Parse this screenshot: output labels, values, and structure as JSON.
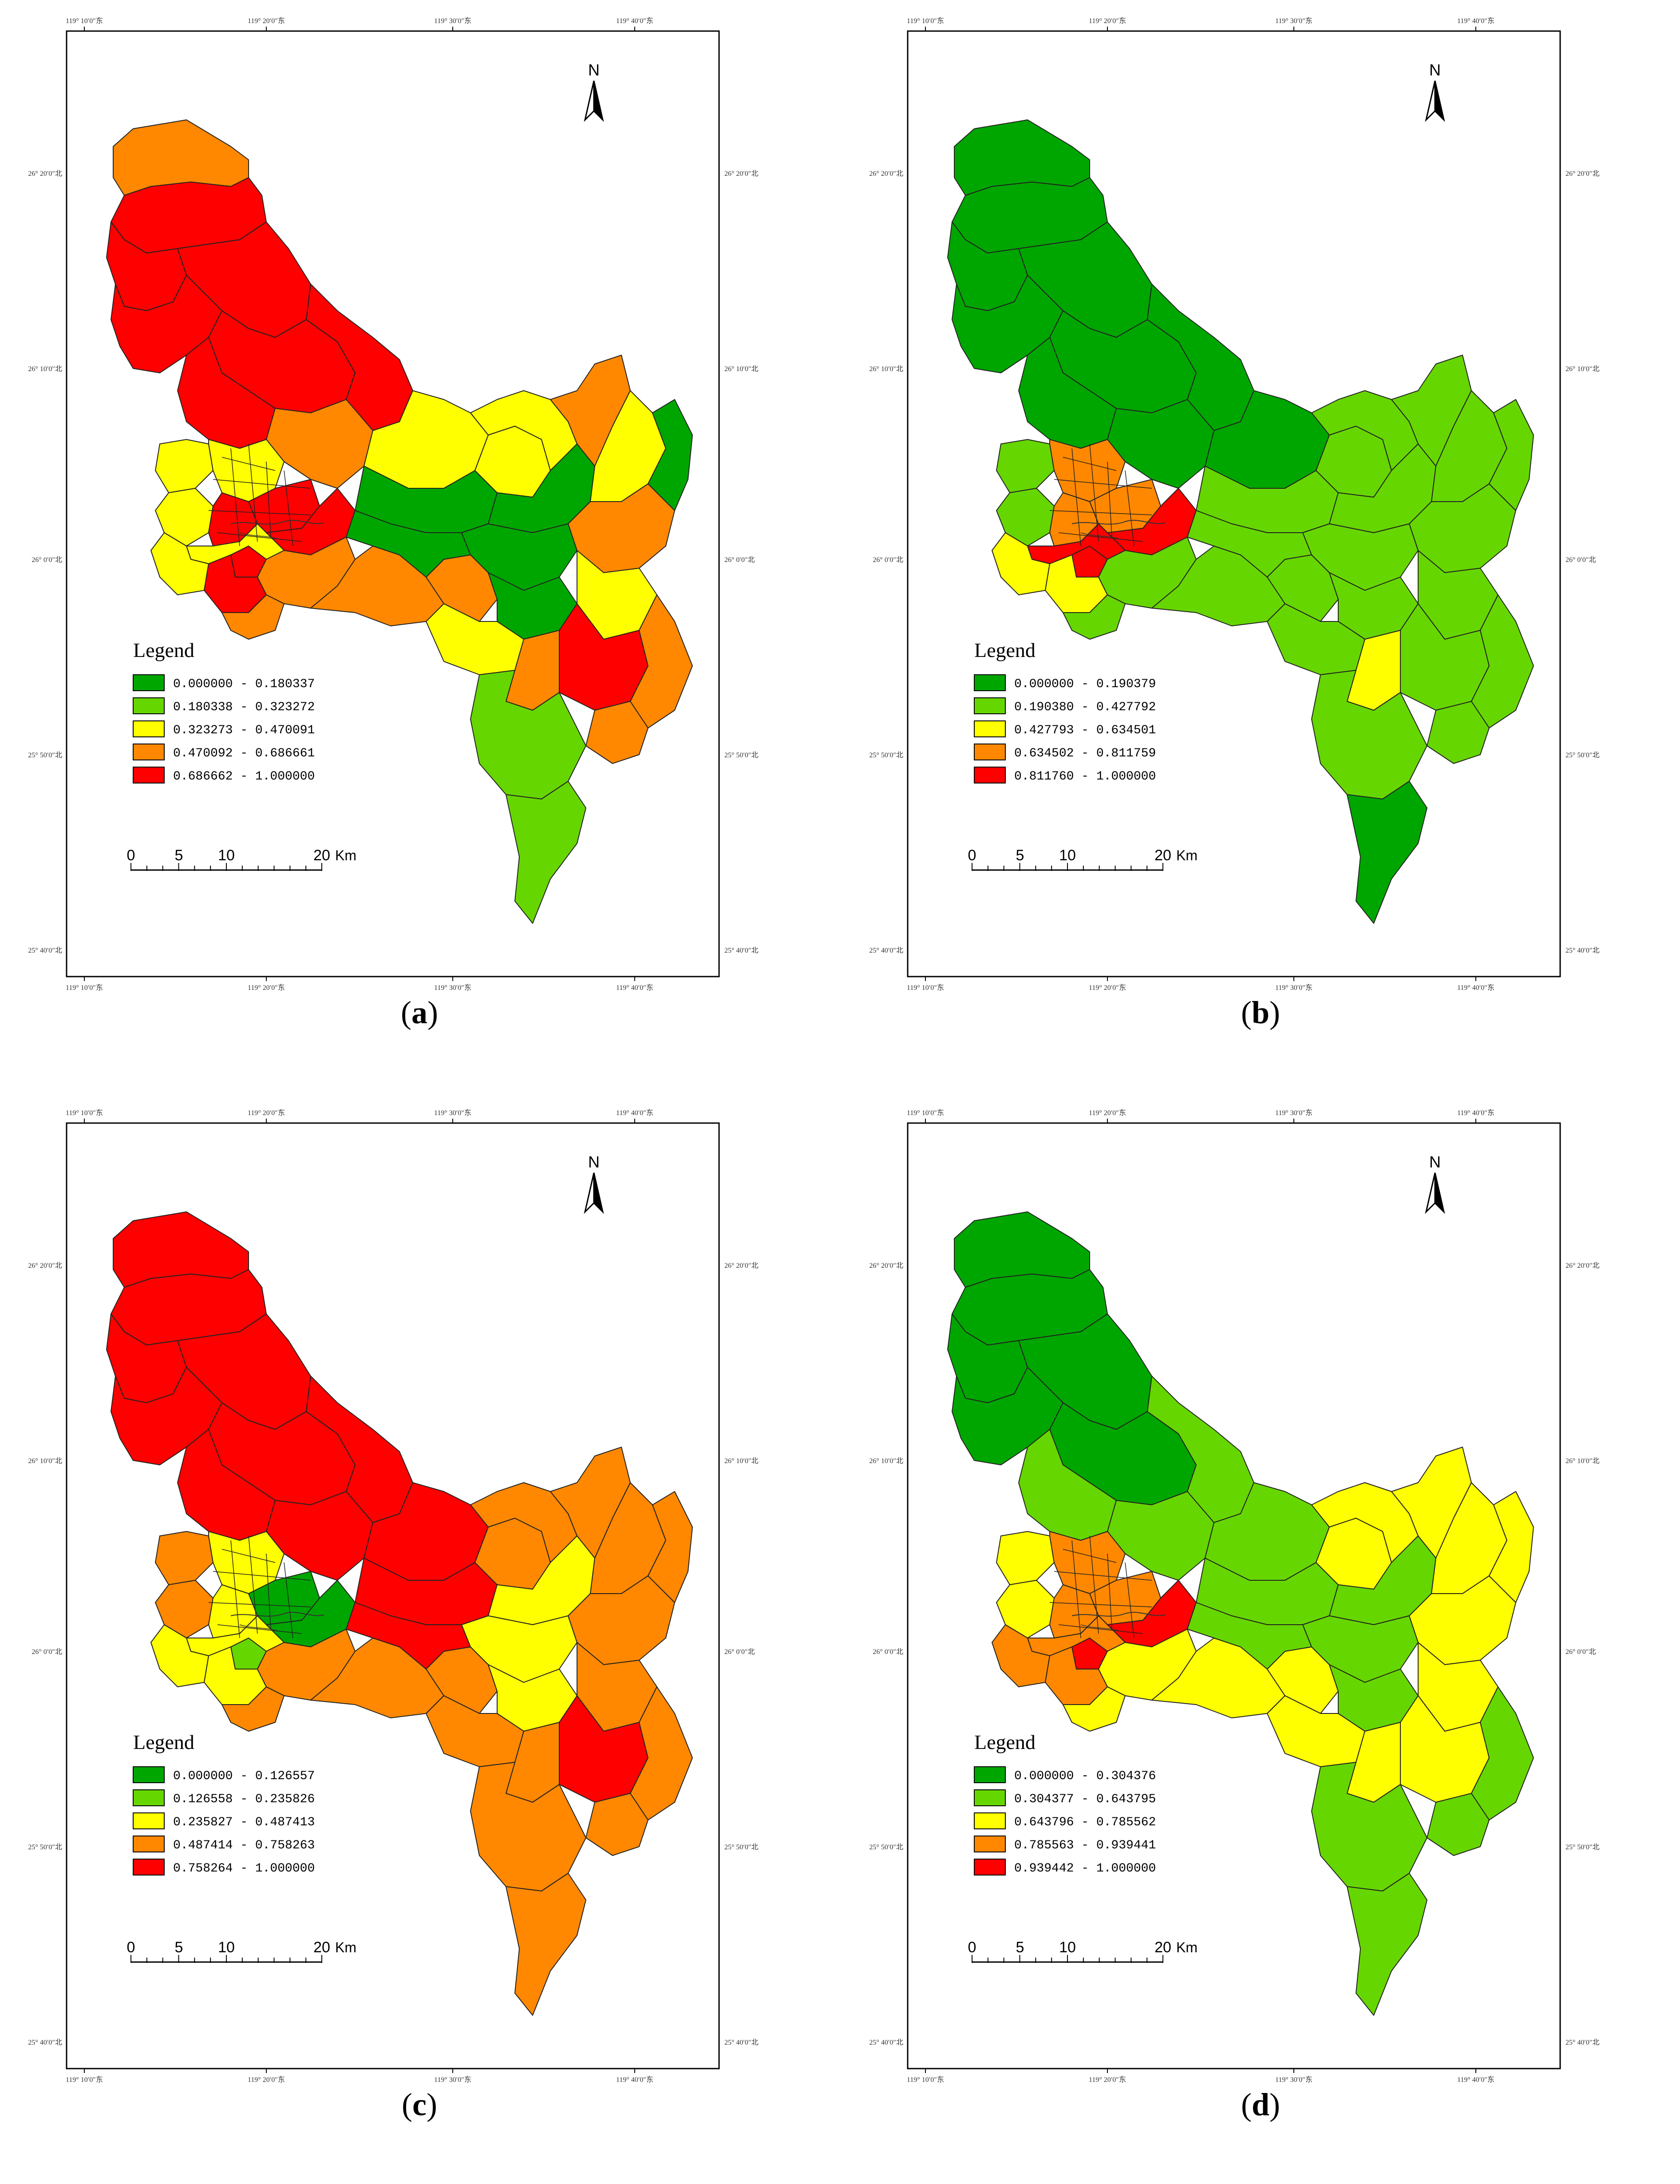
{
  "panels": [
    {
      "id": "a",
      "caption_letter": "a",
      "legend_title": "Legend",
      "legend_classes": [
        {
          "label": "0.000000 - 0.180337",
          "color": "#00a600"
        },
        {
          "label": "0.180338 - 0.323272",
          "color": "#66d600"
        },
        {
          "label": "0.323273 - 0.470091",
          "color": "#ffff00"
        },
        {
          "label": "0.470092 - 0.686661",
          "color": "#ff8800"
        },
        {
          "label": "0.686662 - 1.000000",
          "color": "#ff0000"
        }
      ],
      "region_classes": [
        3,
        4,
        4,
        4,
        4,
        4,
        4,
        4,
        2,
        2,
        3,
        2,
        2,
        4,
        4,
        4,
        4,
        2,
        2,
        4,
        3,
        3,
        3,
        3,
        0,
        0,
        2,
        2,
        0,
        0,
        0,
        2,
        3,
        2,
        3,
        2,
        4,
        3,
        3,
        3,
        1,
        1,
        0
      ],
      "top_ticks": [
        "119° 10′0″东",
        "119° 20′0″东",
        "119° 30′0″东",
        "119° 40′0″东"
      ],
      "bottom_ticks": [
        "119° 10′0″东",
        "119° 20′0″东",
        "119° 30′0″东",
        "119° 40′0″东"
      ],
      "lat_ticks": [
        "26° 20′0″北",
        "26° 10′0″北",
        "26° 0′0″北",
        "25° 50′0″北",
        "25° 40′0″北"
      ]
    },
    {
      "id": "b",
      "caption_letter": "b",
      "legend_title": "Legend",
      "legend_classes": [
        {
          "label": "0.000000 - 0.190379",
          "color": "#00a600"
        },
        {
          "label": "0.190380 - 0.427792",
          "color": "#66d600"
        },
        {
          "label": "0.427793 - 0.634501",
          "color": "#ffff00"
        },
        {
          "label": "0.634502 - 0.811759",
          "color": "#ff8800"
        },
        {
          "label": "0.811760 - 1.000000",
          "color": "#ff0000"
        }
      ],
      "region_classes": [
        0,
        0,
        0,
        0,
        0,
        0,
        0,
        0,
        1,
        1,
        0,
        0,
        3,
        3,
        3,
        4,
        4,
        4,
        2,
        2,
        1,
        1,
        1,
        1,
        1,
        1,
        1,
        1,
        1,
        1,
        1,
        1,
        1,
        1,
        1,
        1,
        1,
        2,
        1,
        1,
        1,
        0,
        1
      ],
      "top_ticks": [
        "119° 10′0″东",
        "119° 20′0″东",
        "119° 30′0″东",
        "119° 40′0″东"
      ],
      "bottom_ticks": [
        "119° 10′0″东",
        "119° 20′0″东",
        "119° 30′0″东",
        "119° 40′0″东"
      ],
      "lat_ticks": [
        "26° 20′0″北",
        "26° 10′0″北",
        "26° 0′0″北",
        "25° 50′0″北",
        "25° 40′0″北"
      ]
    },
    {
      "id": "c",
      "caption_letter": "c",
      "legend_title": "Legend",
      "legend_classes": [
        {
          "label": "0.000000 - 0.126557",
          "color": "#00a600"
        },
        {
          "label": "0.126558 - 0.235826",
          "color": "#66d600"
        },
        {
          "label": "0.235827 - 0.487413",
          "color": "#ffff00"
        },
        {
          "label": "0.487414 - 0.758263",
          "color": "#ff8800"
        },
        {
          "label": "0.758264 - 1.000000",
          "color": "#ff0000"
        }
      ],
      "region_classes": [
        4,
        4,
        4,
        4,
        4,
        4,
        4,
        4,
        3,
        3,
        4,
        4,
        2,
        2,
        0,
        0,
        1,
        2,
        2,
        2,
        3,
        3,
        3,
        3,
        4,
        4,
        3,
        3,
        2,
        2,
        2,
        3,
        3,
        3,
        3,
        3,
        4,
        3,
        3,
        3,
        3,
        3,
        3
      ],
      "top_ticks": [
        "119° 10′0″东",
        "119° 20′0″东",
        "119° 30′0″东",
        "119° 40′0″东"
      ],
      "bottom_ticks": [
        "119° 10′0″东",
        "119° 20′0″东",
        "119° 30′0″东",
        "119° 40′0″东"
      ],
      "lat_ticks": [
        "26° 20′0″北",
        "26° 10′0″北",
        "26° 0′0″北",
        "25° 50′0″北",
        "25° 40′0″北"
      ]
    },
    {
      "id": "d",
      "caption_letter": "d",
      "legend_title": "Legend",
      "legend_classes": [
        {
          "label": "0.000000 - 0.304376",
          "color": "#00a600"
        },
        {
          "label": "0.304377 - 0.643795",
          "color": "#66d600"
        },
        {
          "label": "0.643796 - 0.785562",
          "color": "#ffff00"
        },
        {
          "label": "0.785563 - 0.939441",
          "color": "#ff8800"
        },
        {
          "label": "0.939442 - 1.000000",
          "color": "#ff0000"
        }
      ],
      "region_classes": [
        0,
        0,
        0,
        0,
        0,
        0,
        1,
        1,
        2,
        2,
        1,
        1,
        3,
        3,
        3,
        4,
        4,
        3,
        3,
        3,
        2,
        2,
        2,
        2,
        1,
        1,
        2,
        2,
        1,
        1,
        1,
        2,
        2,
        2,
        2,
        2,
        2,
        2,
        1,
        1,
        1,
        1,
        2
      ],
      "top_ticks": [
        "119° 10′0″东",
        "119° 20′0″东",
        "119° 30′0″东",
        "119° 40′0″东"
      ],
      "bottom_ticks": [
        "119° 10′0″东",
        "119° 20′0″东",
        "119° 30′0″东",
        "119° 40′0″东"
      ],
      "lat_ticks": [
        "26° 20′0″北",
        "26° 10′0″北",
        "26° 0′0″北",
        "25° 50′0″北",
        "25° 40′0″北"
      ]
    }
  ],
  "scale_bar": {
    "labels": [
      "0",
      "5",
      "10",
      "20"
    ],
    "unit": "Km"
  },
  "north_label": "N"
}
